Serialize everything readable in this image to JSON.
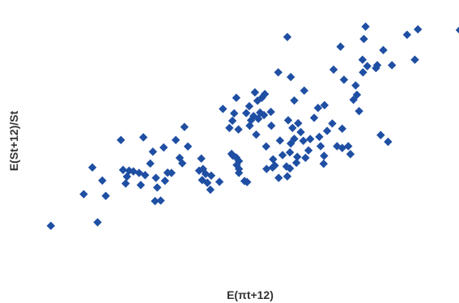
{
  "chart_data": {
    "type": "scatter",
    "xlabel": "E(πt+12)",
    "ylabel": "E(St+12)/St",
    "xlim": [
      0,
      100
    ],
    "ylim": [
      0,
      100
    ],
    "grid": false,
    "color": "#1f4fa3",
    "points": [
      [
        5.4,
        14.2
      ],
      [
        13.0,
        27.0
      ],
      [
        15.0,
        37.8
      ],
      [
        16.2,
        15.6
      ],
      [
        17.3,
        32.5
      ],
      [
        18.1,
        26.3
      ],
      [
        21.6,
        48.9
      ],
      [
        22.1,
        36.8
      ],
      [
        23.0,
        34.1
      ],
      [
        22.7,
        31.3
      ],
      [
        23.5,
        36.5
      ],
      [
        24.5,
        36.2
      ],
      [
        25.8,
        35.6
      ],
      [
        26.2,
        30.7
      ],
      [
        27.2,
        34.7
      ],
      [
        26.8,
        50.0
      ],
      [
        28.4,
        39.4
      ],
      [
        29.0,
        44.2
      ],
      [
        29.5,
        24.2
      ],
      [
        30.0,
        29.7
      ],
      [
        29.7,
        33.6
      ],
      [
        30.8,
        24.4
      ],
      [
        31.5,
        45.9
      ],
      [
        31.8,
        32.4
      ],
      [
        32.4,
        35.7
      ],
      [
        33.3,
        35.6
      ],
      [
        34.3,
        48.9
      ],
      [
        35.2,
        41.7
      ],
      [
        35.8,
        39.5
      ],
      [
        36.3,
        54.2
      ],
      [
        37.1,
        46.3
      ],
      [
        39.7,
        36.5
      ],
      [
        40.2,
        41.4
      ],
      [
        40.6,
        37.2
      ],
      [
        41.2,
        35.2
      ],
      [
        40.4,
        32.7
      ],
      [
        41.6,
        31.6
      ],
      [
        42.5,
        34.5
      ],
      [
        42.3,
        28.8
      ],
      [
        44.4,
        32.0
      ],
      [
        45.2,
        61.5
      ],
      [
        46.7,
        53.8
      ],
      [
        47.4,
        56.7
      ],
      [
        47.8,
        59.7
      ],
      [
        48.3,
        66.0
      ],
      [
        48.8,
        53.2
      ],
      [
        47.2,
        43.3
      ],
      [
        47.5,
        42.6
      ],
      [
        48.3,
        41.8
      ],
      [
        48.9,
        40.4
      ],
      [
        48.4,
        38.8
      ],
      [
        48.9,
        37.2
      ],
      [
        48.9,
        35.6
      ],
      [
        50.2,
        32.3
      ],
      [
        50.8,
        31.9
      ],
      [
        50.6,
        59.8
      ],
      [
        51.3,
        62.6
      ],
      [
        51.7,
        56.9
      ],
      [
        51.4,
        54.7
      ],
      [
        52.3,
        58.6
      ],
      [
        52.9,
        51.1
      ],
      [
        53.4,
        57.5
      ],
      [
        52.6,
        68.2
      ],
      [
        53.2,
        64.8
      ],
      [
        53.8,
        60.0
      ],
      [
        54.2,
        66.0
      ],
      [
        54.9,
        67.5
      ],
      [
        54.7,
        59.0
      ],
      [
        55.2,
        46.3
      ],
      [
        56.3,
        60.3
      ],
      [
        56.4,
        54.7
      ],
      [
        56.8,
        41.1
      ],
      [
        57.2,
        38.6
      ],
      [
        58.1,
        33.6
      ],
      [
        55.3,
        37.2
      ],
      [
        56.7,
        37.8
      ],
      [
        59.0,
        42.8
      ],
      [
        60.1,
        34.2
      ],
      [
        60.7,
        37.4
      ],
      [
        58.4,
        48.7
      ],
      [
        58.0,
        76.3
      ],
      [
        60.1,
        90.6
      ],
      [
        60.3,
        56.9
      ],
      [
        60.9,
        74.4
      ],
      [
        61.7,
        64.9
      ],
      [
        60.9,
        47.5
      ],
      [
        60.7,
        43.9
      ],
      [
        62.4,
        42.1
      ],
      [
        59.9,
        38.2
      ],
      [
        62.2,
        39.7
      ],
      [
        62.6,
        55.7
      ],
      [
        63.2,
        52.1
      ],
      [
        63.8,
        48.6
      ],
      [
        61.7,
        49.4
      ],
      [
        61.3,
        53.8
      ],
      [
        64.0,
        68.9
      ],
      [
        64.3,
        41.7
      ],
      [
        65.0,
        44.7
      ],
      [
        65.4,
        49.3
      ],
      [
        66.3,
        57.9
      ],
      [
        67.2,
        61.9
      ],
      [
        67.5,
        50.2
      ],
      [
        67.8,
        46.4
      ],
      [
        68.7,
        63.0
      ],
      [
        69.3,
        52.6
      ],
      [
        68.6,
        42.5
      ],
      [
        68.5,
        39.3
      ],
      [
        70.5,
        55.6
      ],
      [
        70.8,
        77.4
      ],
      [
        71.6,
        46.4
      ],
      [
        72.8,
        45.7
      ],
      [
        72.8,
        53.5
      ],
      [
        73.2,
        73.3
      ],
      [
        72.4,
        86.7
      ],
      [
        74.2,
        46.4
      ],
      [
        74.7,
        43.2
      ],
      [
        75.4,
        65.2
      ],
      [
        75.9,
        71.0
      ],
      [
        76.2,
        67.2
      ],
      [
        76.7,
        60.6
      ],
      [
        77.6,
        76.3
      ],
      [
        77.5,
        81.4
      ],
      [
        77.8,
        89.8
      ],
      [
        78.6,
        78.8
      ],
      [
        78.2,
        94.8
      ],
      [
        80.6,
        78.0
      ],
      [
        80.9,
        79.2
      ],
      [
        81.7,
        50.9
      ],
      [
        82.3,
        85.3
      ],
      [
        83.4,
        48.2
      ],
      [
        84.3,
        79.2
      ],
      [
        87.8,
        91.5
      ],
      [
        89.6,
        81.4
      ],
      [
        90.3,
        93.7
      ],
      [
        100.0,
        93.4
      ]
    ]
  }
}
